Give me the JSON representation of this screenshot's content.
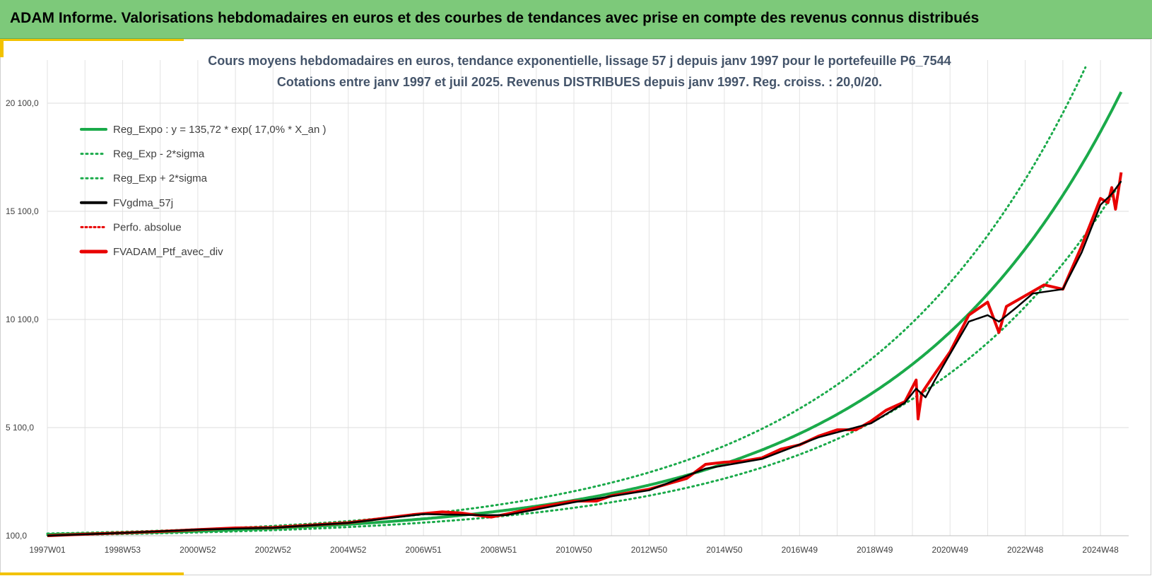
{
  "header": {
    "title": "ADAM Informe. Valorisations hebdomadaires en euros et des courbes de tendances avec prise en compte des revenus connus distribués"
  },
  "colors": {
    "banner": "#7dc97a",
    "accent": "#f2c200",
    "trend": "#1aaa4a",
    "gdma": "#000000",
    "portfolio": "#e80000"
  },
  "chart_data": {
    "type": "line",
    "title_line1": "Cours moyens hebdomadaires en euros, tendance exponentielle, lissage 57 j depuis janv 1997 pour le portefeuille P6_7544",
    "title_line2": "Cotations entre janv 1997 et juil 2025. Revenus DISTRIBUES depuis janv 1997. Reg. croiss. : 20,0/20.",
    "x_range": [
      "1997W01",
      "2025W29"
    ],
    "ylim": [
      100,
      21800
    ],
    "y_ticks": [
      "100,0",
      "5 100,0",
      "10 100,0",
      "15 100,0",
      "20 100,0"
    ],
    "x_ticks": [
      "1997W01",
      "1998W53",
      "2000W52",
      "2002W52",
      "2004W52",
      "2006W51",
      "2008W51",
      "2010W50",
      "2012W50",
      "2014W50",
      "2016W49",
      "2018W49",
      "2020W49",
      "2022W48",
      "2024W48"
    ],
    "x_tick_years": [
      1997.0,
      1999.0,
      2001.0,
      2003.0,
      2005.0,
      2007.0,
      2009.0,
      2011.0,
      2013.0,
      2015.0,
      2017.0,
      2019.0,
      2021.0,
      2023.0,
      2025.0
    ],
    "grid": "vertical and horizontal",
    "legend_position": "top-left",
    "legend": [
      "Reg_Expo : y = 135,72 * exp( 17,0% *  X_an )",
      "Reg_Exp - 2*sigma",
      "Reg_Exp + 2*sigma",
      "FVgdma_57j",
      "Perfo. absolue",
      "FVADAM_Ptf_avec_div"
    ],
    "regression": {
      "a": 135.72,
      "rate": 0.17,
      "start_year": 1997.0,
      "end_year": 2025.55,
      "minus_2sigma_factor": 0.8,
      "plus_2sigma_factor": 1.24
    },
    "series": [
      {
        "name": "FVADAM_Ptf_avec_div",
        "x": [
          1997.0,
          1998.0,
          1999.0,
          2000.0,
          2001.0,
          2002.0,
          2003.0,
          2004.0,
          2005.0,
          2006.0,
          2006.7,
          2007.5,
          2008.0,
          2008.8,
          2009.2,
          2010.0,
          2011.0,
          2011.6,
          2012.0,
          2013.0,
          2014.0,
          2014.5,
          2015.0,
          2015.5,
          2016.0,
          2016.5,
          2017.0,
          2017.5,
          2018.0,
          2018.5,
          2018.9,
          2019.3,
          2019.8,
          2020.1,
          2020.15,
          2020.25,
          2020.6,
          2021.0,
          2021.5,
          2022.0,
          2022.3,
          2022.5,
          2022.8,
          2023.0,
          2023.5,
          2024.0,
          2024.5,
          2025.0,
          2025.2,
          2025.3,
          2025.4,
          2025.55
        ],
        "values": [
          100,
          170,
          230,
          300,
          380,
          460,
          480,
          590,
          700,
          920,
          1070,
          1200,
          1150,
          960,
          1100,
          1400,
          1700,
          1700,
          1950,
          2250,
          2750,
          3400,
          3500,
          3550,
          3700,
          4100,
          4300,
          4700,
          5000,
          5000,
          5400,
          5900,
          6300,
          7300,
          5500,
          6700,
          7600,
          8600,
          10300,
          10900,
          9500,
          10700,
          11000,
          11200,
          11700,
          11500,
          13500,
          15700,
          15500,
          16200,
          15200,
          16900
        ]
      },
      {
        "name": "FVgdma_57j",
        "x": [
          1997.0,
          1999.0,
          2001.0,
          2003.0,
          2005.0,
          2007.0,
          2008.5,
          2009.2,
          2011.0,
          2013.0,
          2014.5,
          2016.0,
          2017.5,
          2018.9,
          2019.8,
          2020.1,
          2020.35,
          2020.6,
          2021.0,
          2021.5,
          2022.0,
          2022.3,
          2022.8,
          2023.2,
          2024.0,
          2024.5,
          2025.0,
          2025.3,
          2025.55
        ],
        "values": [
          100,
          230,
          380,
          470,
          690,
          1100,
          1050,
          1050,
          1650,
          2200,
          3200,
          3650,
          4650,
          5300,
          6250,
          6900,
          6500,
          7300,
          8500,
          10000,
          10300,
          10000,
          10700,
          11300,
          11500,
          13200,
          15400,
          15900,
          16500
        ]
      }
    ]
  }
}
